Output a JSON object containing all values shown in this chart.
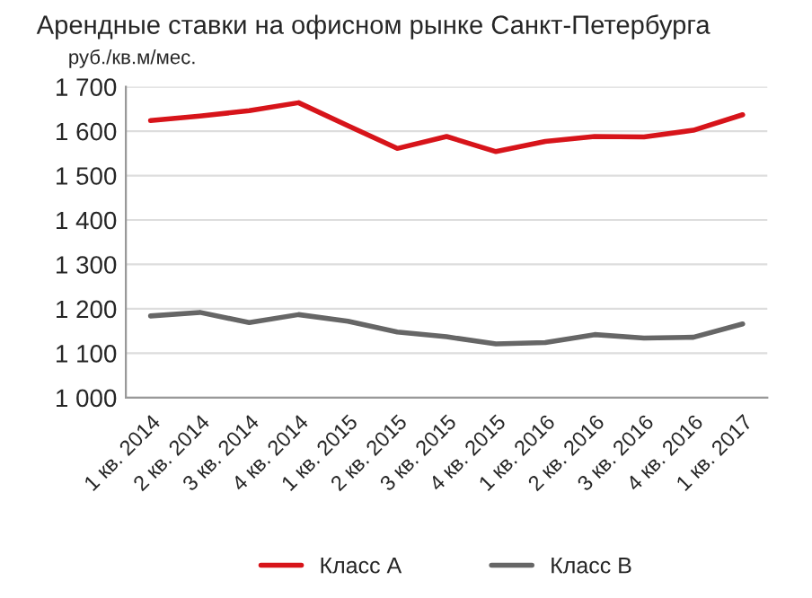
{
  "chart_data": {
    "type": "line",
    "title": "Арендные ставки на офисном рынке Санкт-Петербурга",
    "ylabel": "руб./кв.м/мес.",
    "categories": [
      "1 кв. 2014",
      "2 кв. 2014",
      "3 кв. 2014",
      "4 кв. 2014",
      "1 кв. 2015",
      "2 кв. 2015",
      "3 кв. 2015",
      "4 кв. 2015",
      "1 кв. 2016",
      "2 кв. 2016",
      "3 кв. 2016",
      "4 кв. 2016",
      "1 кв. 2017"
    ],
    "series": [
      {
        "name": "Класс А",
        "color": "#d7141a",
        "values": [
          1624,
          1634,
          1646,
          1664,
          1612,
          1561,
          1588,
          1554,
          1577,
          1588,
          1587,
          1602,
          1637
        ]
      },
      {
        "name": "Класс В",
        "color": "#666666",
        "values": [
          1184,
          1192,
          1169,
          1187,
          1172,
          1148,
          1137,
          1121,
          1124,
          1142,
          1134,
          1136,
          1166
        ]
      }
    ],
    "ylim": [
      1000,
      1700
    ],
    "yticks": [
      {
        "value": 1000,
        "label": "1 000"
      },
      {
        "value": 1100,
        "label": "1 100"
      },
      {
        "value": 1200,
        "label": "1 200"
      },
      {
        "value": 1300,
        "label": "1 300"
      },
      {
        "value": 1400,
        "label": "1 400"
      },
      {
        "value": 1500,
        "label": "1 500"
      },
      {
        "value": 1600,
        "label": "1 600"
      },
      {
        "value": 1700,
        "label": "1 700"
      }
    ],
    "grid": "y",
    "legend": "bottom"
  }
}
